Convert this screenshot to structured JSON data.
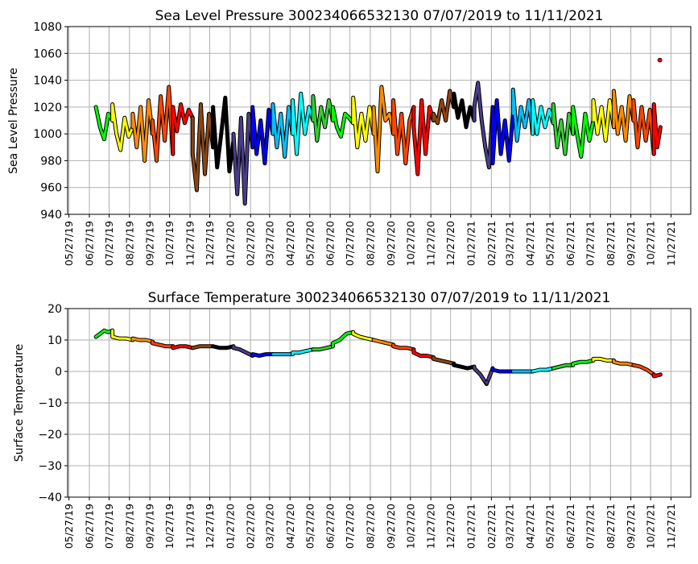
{
  "month_colors": [
    "#00ff00",
    "#ffff00",
    "#ff8c00",
    "#ff4500",
    "#ff0000",
    "#8b4513",
    "#000000",
    "#483d8b",
    "#0000ff",
    "#00bfff",
    "#00ffff",
    "#32cd32"
  ],
  "chart_data": [
    {
      "type": "line",
      "title": "Sea Level Pressure 300234066532130  07/07/2019 to 11/11/2021",
      "xlabel": "",
      "ylabel": "Sea Level Pressure",
      "xlim": [
        "2019-05-25",
        "2021-12-27"
      ],
      "ylim": [
        940,
        1080
      ],
      "yticks": [
        940,
        960,
        980,
        1000,
        1020,
        1040,
        1060,
        1080
      ],
      "xticks": [
        "05/27/19",
        "06/27/19",
        "07/27/19",
        "08/27/19",
        "09/27/19",
        "10/27/19",
        "11/27/19",
        "12/27/19",
        "01/27/20",
        "02/27/20",
        "03/27/20",
        "04/27/20",
        "05/27/20",
        "06/27/20",
        "07/27/20",
        "08/27/20",
        "09/27/20",
        "10/27/20",
        "11/27/20",
        "12/27/20",
        "01/27/21",
        "02/27/21",
        "03/27/21",
        "04/27/21",
        "05/27/21",
        "06/27/21",
        "07/27/21",
        "08/27/21",
        "09/27/21",
        "10/27/21",
        "11/27/21"
      ],
      "grid": true,
      "segments": [
        {
          "start": "2019-07-07",
          "end": "2019-08-01",
          "values": [
            1020,
            1005,
            996,
            1015,
            1010
          ]
        },
        {
          "start": "2019-08-01",
          "end": "2019-09-01",
          "values": [
            1022,
            1000,
            988,
            1012,
            998,
            1005
          ]
        },
        {
          "start": "2019-09-01",
          "end": "2019-10-01",
          "values": [
            1015,
            990,
            1020,
            980,
            1025,
            1000
          ]
        },
        {
          "start": "2019-10-01",
          "end": "2019-11-01",
          "values": [
            1010,
            980,
            1028,
            995,
            1035,
            985
          ]
        },
        {
          "start": "2019-11-01",
          "end": "2019-12-01",
          "values": [
            1020,
            1002,
            1022,
            1008,
            1018,
            1012
          ]
        },
        {
          "start": "2019-12-01",
          "end": "2020-01-01",
          "values": [
            985,
            958,
            1022,
            970,
            1015,
            990
          ]
        },
        {
          "start": "2020-01-01",
          "end": "2020-02-01",
          "values": [
            1020,
            975,
            1000,
            1027,
            972,
            995
          ]
        },
        {
          "start": "2020-02-01",
          "end": "2020-03-01",
          "values": [
            1000,
            955,
            1012,
            948,
            1015,
            990
          ]
        },
        {
          "start": "2020-03-01",
          "end": "2020-04-01",
          "values": [
            1020,
            985,
            1010,
            978,
            1018,
            1000
          ]
        },
        {
          "start": "2020-04-01",
          "end": "2020-05-01",
          "values": [
            1022,
            990,
            1015,
            983,
            1020,
            1000
          ]
        },
        {
          "start": "2020-05-01",
          "end": "2020-06-01",
          "values": [
            1025,
            985,
            1030,
            1000,
            1020,
            1010
          ]
        },
        {
          "start": "2020-06-01",
          "end": "2020-07-01",
          "values": [
            1028,
            995,
            1020,
            1005,
            1025,
            1010
          ]
        },
        {
          "start": "2020-07-01",
          "end": "2020-08-01",
          "values": [
            1020,
            1005,
            998,
            1015,
            1012,
            1008
          ]
        },
        {
          "start": "2020-08-01",
          "end": "2020-09-01",
          "values": [
            1027,
            990,
            1015,
            995,
            1020,
            1000
          ]
        },
        {
          "start": "2020-09-01",
          "end": "2020-10-01",
          "values": [
            1020,
            972,
            1035,
            1010,
            1015,
            1000
          ]
        },
        {
          "start": "2020-10-01",
          "end": "2020-11-01",
          "values": [
            1025,
            985,
            1015,
            978,
            1010,
            1020
          ]
        },
        {
          "start": "2020-11-01",
          "end": "2020-12-01",
          "values": [
            1005,
            970,
            1025,
            985,
            1020,
            1010
          ]
        },
        {
          "start": "2020-12-01",
          "end": "2021-01-01",
          "values": [
            1015,
            1008,
            1025,
            1010,
            1032,
            1020
          ]
        },
        {
          "start": "2021-01-01",
          "end": "2021-02-01",
          "values": [
            1030,
            1012,
            1025,
            1005,
            1020,
            1010
          ]
        },
        {
          "start": "2021-02-01",
          "end": "2021-03-01",
          "values": [
            1020,
            1038,
            1010,
            990,
            975,
            1020
          ]
        },
        {
          "start": "2021-03-01",
          "end": "2021-04-01",
          "values": [
            978,
            1025,
            985,
            1010,
            980,
            1015
          ]
        },
        {
          "start": "2021-04-01",
          "end": "2021-05-01",
          "values": [
            1033,
            995,
            1020,
            1005,
            1025,
            1000
          ]
        },
        {
          "start": "2021-05-01",
          "end": "2021-06-01",
          "values": [
            1025,
            1000,
            1020,
            1005,
            1018,
            1008
          ]
        },
        {
          "start": "2021-06-01",
          "end": "2021-07-01",
          "values": [
            1022,
            990,
            1010,
            985,
            1015,
            1000
          ]
        },
        {
          "start": "2021-07-01",
          "end": "2021-08-01",
          "values": [
            1020,
            1000,
            983,
            1015,
            995,
            1010
          ]
        },
        {
          "start": "2021-08-01",
          "end": "2021-09-01",
          "values": [
            1025,
            1000,
            1020,
            995,
            1025,
            1005
          ]
        },
        {
          "start": "2021-09-01",
          "end": "2021-10-01",
          "values": [
            1032,
            1000,
            1020,
            995,
            1028,
            1010
          ]
        },
        {
          "start": "2021-10-01",
          "end": "2021-11-01",
          "values": [
            1025,
            990,
            1020,
            995,
            1018,
            985
          ]
        },
        {
          "start": "2021-11-01",
          "end": "2021-11-11",
          "values": [
            1022,
            990,
            1005
          ]
        }
      ],
      "outliers": [
        {
          "date": "2021-11-10",
          "value": 1055
        }
      ]
    },
    {
      "type": "line",
      "title": "Surface Temperature 300234066532130  07/07/2019 to 11/11/2021",
      "xlabel": "",
      "ylabel": "Surface Temperature",
      "xlim": [
        "2019-05-25",
        "2021-12-27"
      ],
      "ylim": [
        -40,
        20
      ],
      "yticks": [
        -40,
        -30,
        -20,
        -10,
        0,
        10,
        20
      ],
      "xticks": [
        "05/27/19",
        "06/27/19",
        "07/27/19",
        "08/27/19",
        "09/27/19",
        "10/27/19",
        "11/27/19",
        "12/27/19",
        "01/27/20",
        "02/27/20",
        "03/27/20",
        "04/27/20",
        "05/27/20",
        "06/27/20",
        "07/27/20",
        "08/27/20",
        "09/27/20",
        "10/27/20",
        "11/27/20",
        "12/27/20",
        "01/27/21",
        "02/27/21",
        "03/27/21",
        "04/27/21",
        "05/27/21",
        "06/27/21",
        "07/27/21",
        "08/27/21",
        "09/27/21",
        "10/27/21",
        "11/27/21"
      ],
      "grid": true,
      "segments": [
        {
          "start": "2019-07-07",
          "end": "2019-08-01",
          "values": [
            11,
            12,
            13,
            12.5,
            13
          ]
        },
        {
          "start": "2019-08-01",
          "end": "2019-09-01",
          "values": [
            11,
            10.5,
            10.5,
            10
          ]
        },
        {
          "start": "2019-09-01",
          "end": "2019-10-01",
          "values": [
            10.5,
            10,
            10,
            9.5
          ]
        },
        {
          "start": "2019-10-01",
          "end": "2019-11-01",
          "values": [
            9,
            8.5,
            8,
            8
          ]
        },
        {
          "start": "2019-11-01",
          "end": "2019-12-01",
          "values": [
            7.5,
            8,
            8,
            7.5
          ]
        },
        {
          "start": "2019-12-01",
          "end": "2020-01-01",
          "values": [
            7.5,
            8,
            8,
            8
          ]
        },
        {
          "start": "2020-01-01",
          "end": "2020-02-01",
          "values": [
            8,
            7.5,
            7.5,
            8
          ]
        },
        {
          "start": "2020-02-01",
          "end": "2020-03-01",
          "values": [
            7.5,
            7,
            6,
            5
          ]
        },
        {
          "start": "2020-03-01",
          "end": "2020-04-01",
          "values": [
            5.5,
            5,
            5.5,
            5.5
          ]
        },
        {
          "start": "2020-04-01",
          "end": "2020-05-01",
          "values": [
            5.5,
            5.5,
            5.5,
            5.5
          ]
        },
        {
          "start": "2020-05-01",
          "end": "2020-06-01",
          "values": [
            6,
            6,
            6.5,
            7
          ]
        },
        {
          "start": "2020-06-01",
          "end": "2020-07-01",
          "values": [
            7,
            7,
            7.5,
            8
          ]
        },
        {
          "start": "2020-07-01",
          "end": "2020-08-01",
          "values": [
            9,
            10,
            12,
            12.5
          ]
        },
        {
          "start": "2020-08-01",
          "end": "2020-09-01",
          "values": [
            12,
            11,
            10.5,
            10
          ]
        },
        {
          "start": "2020-09-01",
          "end": "2020-10-01",
          "values": [
            10,
            9.5,
            9,
            8.5
          ]
        },
        {
          "start": "2020-10-01",
          "end": "2020-11-01",
          "values": [
            8,
            7.5,
            7.5,
            7
          ]
        },
        {
          "start": "2020-11-01",
          "end": "2020-12-01",
          "values": [
            6,
            5,
            5,
            4.5
          ]
        },
        {
          "start": "2020-12-01",
          "end": "2021-01-01",
          "values": [
            4,
            3.5,
            3,
            2.5
          ]
        },
        {
          "start": "2021-01-01",
          "end": "2021-02-01",
          "values": [
            2,
            1.5,
            1,
            1.5
          ]
        },
        {
          "start": "2021-02-01",
          "end": "2021-03-01",
          "values": [
            1,
            -1,
            -4,
            1
          ]
        },
        {
          "start": "2021-03-01",
          "end": "2021-04-01",
          "values": [
            0.5,
            0,
            0,
            0
          ]
        },
        {
          "start": "2021-04-01",
          "end": "2021-05-01",
          "values": [
            0,
            0,
            0,
            0
          ]
        },
        {
          "start": "2021-05-01",
          "end": "2021-06-01",
          "values": [
            0,
            0.5,
            0.5,
            1
          ]
        },
        {
          "start": "2021-06-01",
          "end": "2021-07-01",
          "values": [
            1,
            1.5,
            2,
            2
          ]
        },
        {
          "start": "2021-07-01",
          "end": "2021-08-01",
          "values": [
            2.5,
            3,
            3,
            3.5
          ]
        },
        {
          "start": "2021-08-01",
          "end": "2021-09-01",
          "values": [
            4,
            4,
            3.5,
            3.5
          ]
        },
        {
          "start": "2021-09-01",
          "end": "2021-10-01",
          "values": [
            3,
            2.5,
            2.5,
            2
          ]
        },
        {
          "start": "2021-10-01",
          "end": "2021-11-01",
          "values": [
            2,
            1.5,
            0.5,
            -1
          ]
        },
        {
          "start": "2021-11-01",
          "end": "2021-11-11",
          "values": [
            -1.5,
            -1
          ]
        }
      ],
      "outliers": [
        {
          "date": "2021-02-20",
          "value": -3.5
        }
      ]
    }
  ]
}
